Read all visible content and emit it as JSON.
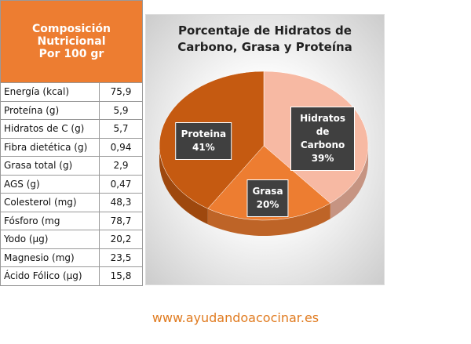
{
  "table": {
    "header": [
      "Composición Nutricional",
      "Por 100 gr"
    ],
    "rows": [
      [
        "Energía (kcal)",
        "75,9"
      ],
      [
        "Proteína (g)",
        "5,9"
      ],
      [
        "Hidratos de C (g)",
        "5,7"
      ],
      [
        "Fibra dietética (g)",
        "0,94"
      ],
      [
        "Grasa total (g)",
        "2,9"
      ],
      [
        "AGS (g)",
        "0,47"
      ],
      [
        "Colesterol (mg)",
        "48,3"
      ],
      [
        "Fósforo (mg",
        "78,7"
      ],
      [
        "Yodo (µg)",
        "20,2"
      ],
      [
        "Magnesio (mg)",
        "23,5"
      ],
      [
        "Ácido Fólico (µg)",
        "15,8"
      ]
    ]
  },
  "chart_data": {
    "type": "pie",
    "title": "Porcentaje de Hidratos de Carbono, Grasa y Proteína",
    "categories": [
      "Hidratos de Carbono",
      "Grasa",
      "Proteina"
    ],
    "values": [
      39,
      20,
      41
    ],
    "value_labels": [
      "39%",
      "20%",
      "41%"
    ],
    "colors": [
      "#f7b9a3",
      "#ed7d31",
      "#c55a11"
    ]
  },
  "footer": "www.ayudandoacocinar.es"
}
